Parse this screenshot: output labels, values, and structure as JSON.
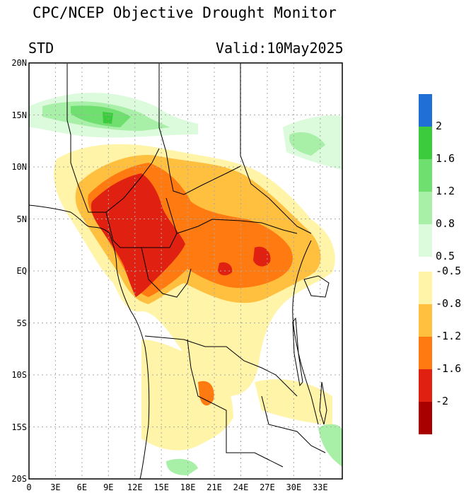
{
  "header": {
    "title": "CPC/NCEP Objective Drought Monitor",
    "index_label": "STD",
    "valid_date": "Valid:10May2025"
  },
  "axes": {
    "lat_ticks": [
      {
        "value": 20,
        "label": "20N"
      },
      {
        "value": 15,
        "label": "15N"
      },
      {
        "value": 10,
        "label": "10N"
      },
      {
        "value": 5,
        "label": "5N"
      },
      {
        "value": 0,
        "label": "EQ"
      },
      {
        "value": -5,
        "label": "5S"
      },
      {
        "value": -10,
        "label": "10S"
      },
      {
        "value": -15,
        "label": "15S"
      },
      {
        "value": -20,
        "label": "20S"
      }
    ],
    "lon_ticks": [
      {
        "value": 0,
        "label": "0"
      },
      {
        "value": 3,
        "label": "3E"
      },
      {
        "value": 6,
        "label": "6E"
      },
      {
        "value": 9,
        "label": "9E"
      },
      {
        "value": 12,
        "label": "12E"
      },
      {
        "value": 15,
        "label": "15E"
      },
      {
        "value": 18,
        "label": "18E"
      },
      {
        "value": 21,
        "label": "21E"
      },
      {
        "value": 24,
        "label": "24E"
      },
      {
        "value": 27,
        "label": "27E"
      },
      {
        "value": 30,
        "label": "30E"
      },
      {
        "value": 33,
        "label": "33E"
      }
    ],
    "lon_range": [
      0,
      35.5
    ],
    "lat_range": [
      -20,
      20
    ],
    "grid": true
  },
  "colorbar": {
    "wet": [
      {
        "color": "#1f6fd6"
      },
      {
        "color": "#3ccb3c"
      },
      {
        "color": "#6fe06f"
      },
      {
        "color": "#a8f0a8"
      },
      {
        "color": "#dcfadc"
      }
    ],
    "wet_labels": [
      "2",
      "1.6",
      "1.2",
      "0.8",
      "0.5"
    ],
    "dry": [
      {
        "color": "#fff4a8"
      },
      {
        "color": "#ffc040"
      },
      {
        "color": "#ff7a10"
      },
      {
        "color": "#e02010"
      },
      {
        "color": "#a80000"
      }
    ],
    "dry_labels": [
      "-0.5",
      "-0.8",
      "-1.2",
      "-1.6",
      "-2"
    ]
  }
}
